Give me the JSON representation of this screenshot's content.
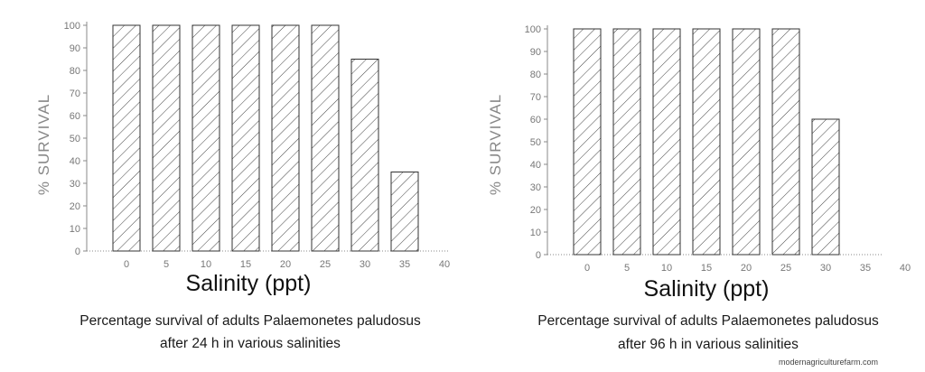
{
  "chart_data": [
    {
      "type": "bar",
      "categories": [
        "0",
        "5",
        "10",
        "15",
        "20",
        "25",
        "30",
        "35"
      ],
      "values": [
        100,
        100,
        100,
        100,
        100,
        100,
        85,
        35
      ],
      "x_ticks": [
        "0",
        "5",
        "10",
        "15",
        "20",
        "25",
        "30",
        "35",
        "40"
      ],
      "y_ticks": [
        "0",
        "10",
        "20",
        "30",
        "40",
        "50",
        "60",
        "70",
        "80",
        "90",
        "100"
      ],
      "ylim": [
        0,
        100
      ],
      "xlabel": "Salinity (ppt)",
      "ylabel": "% SURVIVAL",
      "caption": [
        "Percentage survival of adults Palaemonetes paludosus",
        "after 24 h in various salinities"
      ],
      "grid": false,
      "bar_fill": "hatched"
    },
    {
      "type": "bar",
      "categories": [
        "0",
        "5",
        "10",
        "15",
        "20",
        "25",
        "30",
        "35"
      ],
      "values": [
        100,
        100,
        100,
        100,
        100,
        100,
        60,
        0
      ],
      "x_ticks": [
        "0",
        "5",
        "10",
        "15",
        "20",
        "25",
        "30",
        "35",
        "40"
      ],
      "y_ticks": [
        "0",
        "10",
        "20",
        "30",
        "40",
        "50",
        "60",
        "70",
        "80",
        "90",
        "100"
      ],
      "ylim": [
        0,
        100
      ],
      "xlabel": "Salinity (ppt)",
      "ylabel": "% SURVIVAL",
      "caption": [
        "Percentage survival of adults Palaemonetes paludosus",
        "after 96 h in various salinities"
      ],
      "grid": false,
      "bar_fill": "hatched"
    }
  ],
  "watermark": "modernagriculturefarm.com",
  "colors": {
    "bar_stroke": "#333333",
    "axis": "#888888",
    "text": "#111111"
  }
}
